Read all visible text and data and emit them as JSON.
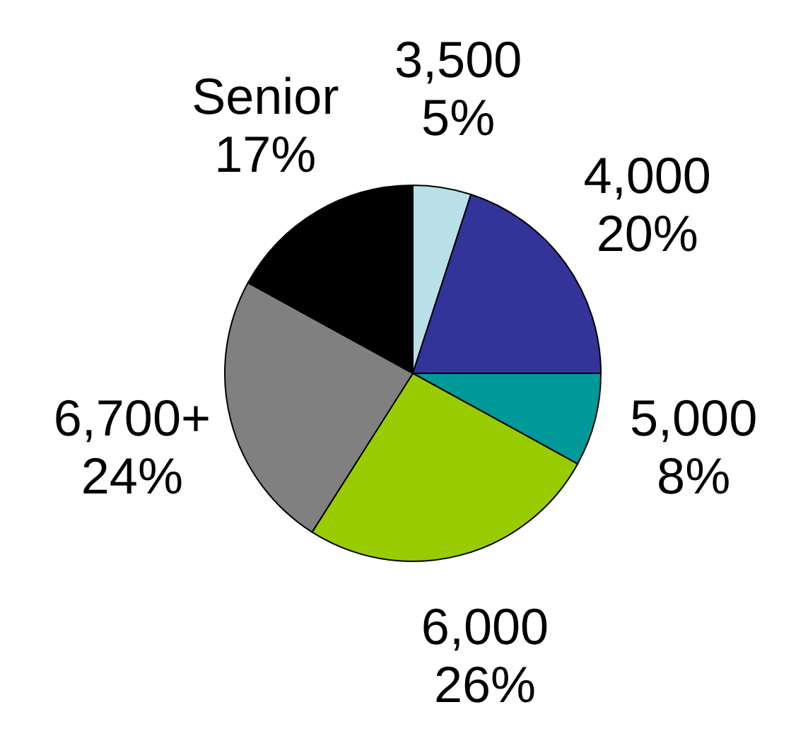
{
  "chart_data": {
    "type": "pie",
    "categories": [
      "3,500",
      "4,000",
      "5,000",
      "6,000",
      "6,700+",
      "Senior"
    ],
    "values": [
      5,
      20,
      8,
      26,
      24,
      17
    ],
    "value_labels": [
      "5%",
      "20%",
      "8%",
      "26%",
      "24%",
      "17%"
    ],
    "colors": [
      "#b8e0e6",
      "#333399",
      "#009999",
      "#99cc00",
      "#808080",
      "#000000"
    ]
  }
}
